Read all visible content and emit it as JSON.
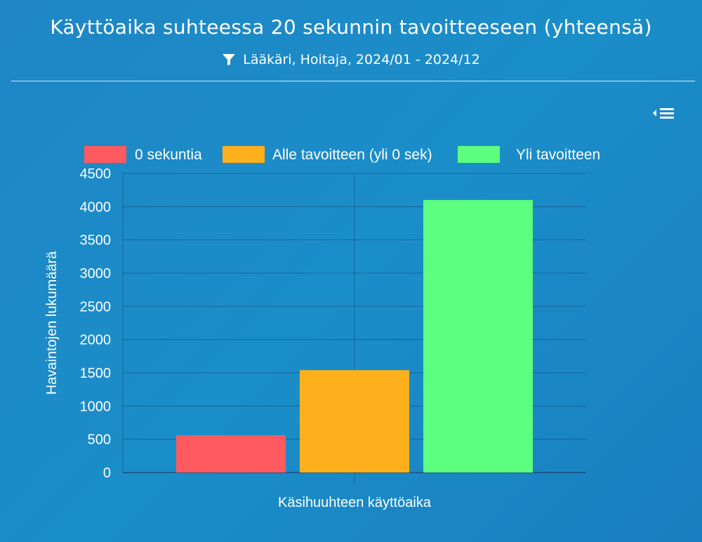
{
  "header": {
    "title": "Käyttöaika suhteessa 20 sekunnin tavoitteeseen (yhteensä)",
    "filter_text": "Lääkäri, Hoitaja, 2024/01 - 2024/12"
  },
  "chart_data": {
    "type": "bar",
    "xlabel": "Käsihuuhteen käyttöaika",
    "ylabel": "Havaintojen lukumäärä",
    "ylim": [
      0,
      4500
    ],
    "yticks": [
      0,
      500,
      1000,
      1500,
      2000,
      2500,
      3000,
      3500,
      4000,
      4500
    ],
    "grid": true,
    "legend_position": "top",
    "series": [
      {
        "name": "0 sekuntia",
        "values": [
          560
        ],
        "color": "#ff5a5f"
      },
      {
        "name": "Alle tavoitteen (yli 0 sek)",
        "values": [
          1540
        ],
        "color": "#fdb01c"
      },
      {
        "name": "Yli tavoitteen",
        "values": [
          4100
        ],
        "color": "#5cff7f"
      }
    ]
  }
}
